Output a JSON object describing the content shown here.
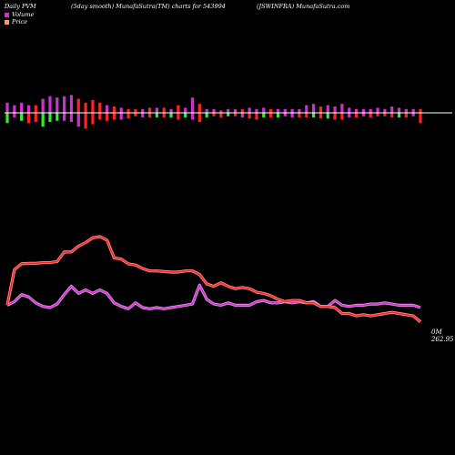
{
  "header": {
    "left": "Daily PVM",
    "middle": "(5day smooth) MunafaSutra(TM) charts for 543994",
    "right": "(JSWINFRA) MunafaSutra.com"
  },
  "legend": {
    "volume_label": "Volume",
    "price_label": "Price",
    "volume_color": "#cc33cc",
    "price_color": "#ff9966"
  },
  "chart_data": {
    "type": "line",
    "colors": {
      "price_line": "#ff2222",
      "price_glow": "#ff9999",
      "volume_line": "#cc33cc",
      "volume_glow": "#ee99ee",
      "bar_up": "#cc33cc",
      "bar_down": "#ff2222",
      "bar_green": "#33ee33",
      "baseline": "#ffffff"
    },
    "price": [
      0.42,
      0.72,
      0.77,
      0.775,
      0.775,
      0.78,
      0.78,
      0.79,
      0.87,
      0.87,
      0.92,
      0.95,
      0.99,
      1.0,
      0.97,
      0.82,
      0.81,
      0.77,
      0.76,
      0.73,
      0.71,
      0.71,
      0.705,
      0.7,
      0.7,
      0.71,
      0.71,
      0.68,
      0.6,
      0.58,
      0.61,
      0.58,
      0.56,
      0.57,
      0.56,
      0.53,
      0.52,
      0.5,
      0.47,
      0.45,
      0.46,
      0.46,
      0.44,
      0.44,
      0.41,
      0.41,
      0.4,
      0.35,
      0.35,
      0.33,
      0.34,
      0.33,
      0.34,
      0.35,
      0.36,
      0.35,
      0.34,
      0.33,
      0.28
    ],
    "volume": [
      0.42,
      0.45,
      0.51,
      0.49,
      0.44,
      0.41,
      0.4,
      0.43,
      0.51,
      0.58,
      0.52,
      0.55,
      0.52,
      0.55,
      0.52,
      0.44,
      0.41,
      0.39,
      0.44,
      0.4,
      0.39,
      0.4,
      0.39,
      0.4,
      0.41,
      0.42,
      0.43,
      0.59,
      0.47,
      0.43,
      0.42,
      0.44,
      0.42,
      0.42,
      0.42,
      0.45,
      0.46,
      0.44,
      0.44,
      0.45,
      0.44,
      0.45,
      0.44,
      0.45,
      0.41,
      0.41,
      0.46,
      0.42,
      0.41,
      0.42,
      0.42,
      0.43,
      0.43,
      0.44,
      0.43,
      0.42,
      0.42,
      0.42,
      0.4
    ],
    "bars": [
      {
        "top": 0.4,
        "bottom": 0.45,
        "c": "p"
      },
      {
        "top": 0.3,
        "bottom": 0.2,
        "c": "p"
      },
      {
        "top": 0.4,
        "bottom": 0.35,
        "c": "p"
      },
      {
        "top": 0.3,
        "bottom": 0.45,
        "c": "p"
      },
      {
        "top": 0.3,
        "bottom": 0.4,
        "c": "r"
      },
      {
        "top": 0.55,
        "bottom": 0.6,
        "c": "p"
      },
      {
        "top": 0.65,
        "bottom": 0.4,
        "c": "p"
      },
      {
        "top": 0.6,
        "bottom": 0.35,
        "c": "p"
      },
      {
        "top": 0.65,
        "bottom": 0.35,
        "c": "p"
      },
      {
        "top": 0.7,
        "bottom": 0.4,
        "c": "p"
      },
      {
        "top": 0.55,
        "bottom": 0.6,
        "c": "r"
      },
      {
        "top": 0.4,
        "bottom": 0.7,
        "c": "r"
      },
      {
        "top": 0.5,
        "bottom": 0.5,
        "c": "r"
      },
      {
        "top": 0.4,
        "bottom": 0.3,
        "c": "r"
      },
      {
        "top": 0.3,
        "bottom": 0.35,
        "c": "p"
      },
      {
        "top": 0.25,
        "bottom": 0.3,
        "c": "r"
      },
      {
        "top": 0.2,
        "bottom": 0.3,
        "c": "p"
      },
      {
        "top": 0.15,
        "bottom": 0.25,
        "c": "r"
      },
      {
        "top": 0.15,
        "bottom": 0.15,
        "c": "r"
      },
      {
        "top": 0.15,
        "bottom": 0.2,
        "c": "p"
      },
      {
        "top": 0.2,
        "bottom": 0.2,
        "c": "r"
      },
      {
        "top": 0.2,
        "bottom": 0.2,
        "c": "p"
      },
      {
        "top": 0.2,
        "bottom": 0.2,
        "c": "r"
      },
      {
        "top": 0.15,
        "bottom": 0.2,
        "c": "p"
      },
      {
        "top": 0.3,
        "bottom": 0.3,
        "c": "r"
      },
      {
        "top": 0.2,
        "bottom": 0.2,
        "c": "p"
      },
      {
        "top": 0.6,
        "bottom": 0.3,
        "c": "p"
      },
      {
        "top": 0.35,
        "bottom": 0.4,
        "c": "r"
      },
      {
        "top": 0.15,
        "bottom": 0.2,
        "c": "p"
      },
      {
        "top": 0.15,
        "bottom": 0.15,
        "c": "p"
      },
      {
        "top": 0.1,
        "bottom": 0.2,
        "c": "r"
      },
      {
        "top": 0.15,
        "bottom": 0.15,
        "c": "p"
      },
      {
        "top": 0.15,
        "bottom": 0.15,
        "c": "p"
      },
      {
        "top": 0.15,
        "bottom": 0.2,
        "c": "r"
      },
      {
        "top": 0.2,
        "bottom": 0.25,
        "c": "p"
      },
      {
        "top": 0.15,
        "bottom": 0.3,
        "c": "p"
      },
      {
        "top": 0.2,
        "bottom": 0.2,
        "c": "p"
      },
      {
        "top": 0.15,
        "bottom": 0.2,
        "c": "r"
      },
      {
        "top": 0.15,
        "bottom": 0.2,
        "c": "p"
      },
      {
        "top": 0.15,
        "bottom": 0.15,
        "c": "p"
      },
      {
        "top": 0.15,
        "bottom": 0.2,
        "c": "p"
      },
      {
        "top": 0.15,
        "bottom": 0.2,
        "c": "p"
      },
      {
        "top": 0.3,
        "bottom": 0.2,
        "c": "p"
      },
      {
        "top": 0.35,
        "bottom": 0.2,
        "c": "p"
      },
      {
        "top": 0.25,
        "bottom": 0.25,
        "c": "r"
      },
      {
        "top": 0.3,
        "bottom": 0.25,
        "c": "p"
      },
      {
        "top": 0.25,
        "bottom": 0.3,
        "c": "p"
      },
      {
        "top": 0.35,
        "bottom": 0.3,
        "c": "p"
      },
      {
        "top": 0.2,
        "bottom": 0.2,
        "c": "p"
      },
      {
        "top": 0.15,
        "bottom": 0.2,
        "c": "p"
      },
      {
        "top": 0.15,
        "bottom": 0.15,
        "c": "p"
      },
      {
        "top": 0.15,
        "bottom": 0.2,
        "c": "p"
      },
      {
        "top": 0.2,
        "bottom": 0.15,
        "c": "p"
      },
      {
        "top": 0.15,
        "bottom": 0.15,
        "c": "p"
      },
      {
        "top": 0.25,
        "bottom": 0.2,
        "c": "p"
      },
      {
        "top": 0.2,
        "bottom": 0.2,
        "c": "p"
      },
      {
        "top": 0.15,
        "bottom": 0.2,
        "c": "p"
      },
      {
        "top": 0.15,
        "bottom": 0.15,
        "c": "p"
      },
      {
        "top": 0.15,
        "bottom": 0.45,
        "c": "r"
      }
    ],
    "bottom_colors": [
      "g",
      "p",
      "g",
      "r",
      "r",
      "g",
      "g",
      "g",
      "p",
      "p",
      "p",
      "r",
      "r",
      "r",
      "r",
      "r",
      "p",
      "r",
      "r",
      "p",
      "r",
      "g",
      "r",
      "g",
      "r",
      "g",
      "p",
      "r",
      "g",
      "r",
      "r",
      "g",
      "r",
      "p",
      "r",
      "r",
      "g",
      "r",
      "g",
      "p",
      "p",
      "r",
      "r",
      "g",
      "r",
      "g",
      "r",
      "r",
      "p",
      "r",
      "p",
      "r",
      "r",
      "r",
      "r",
      "g",
      "r",
      "p",
      "r"
    ],
    "price_label": "262.95",
    "volume_label": "0M"
  }
}
